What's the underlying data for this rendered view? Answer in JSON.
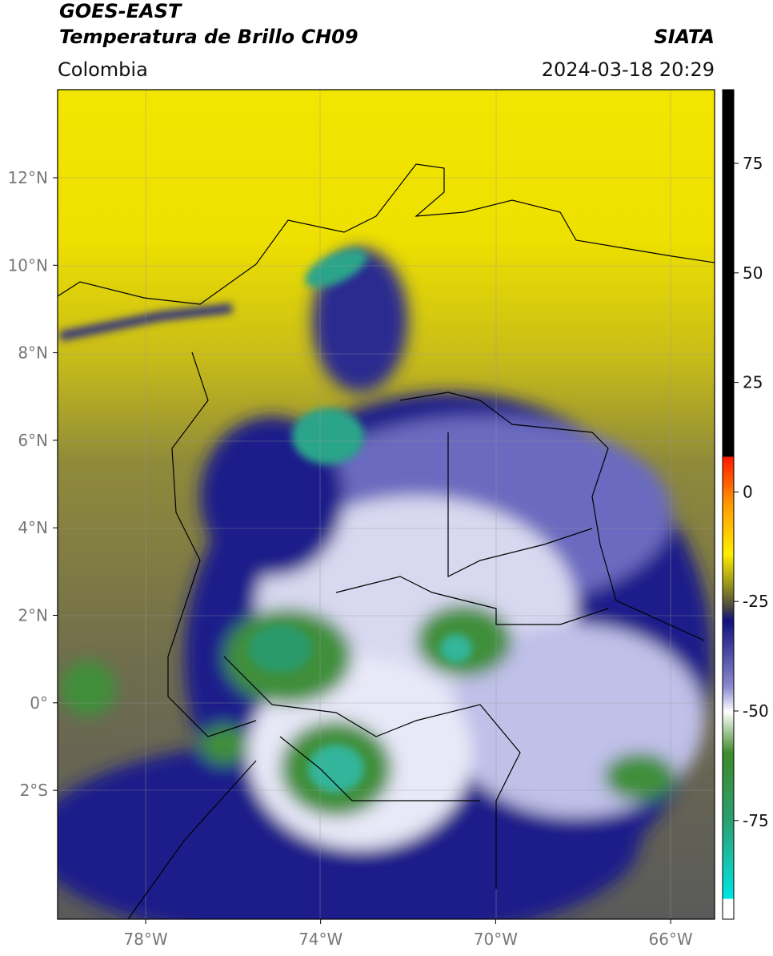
{
  "header": {
    "satellite": "GOES-EAST",
    "product": "Temperatura de Brillo CH09",
    "agency": "SIATA",
    "region": "Colombia",
    "datetime": "2024-03-18 20:29"
  },
  "map": {
    "lat_labels": [
      "12°N",
      "10°N",
      "8°N",
      "6°N",
      "4°N",
      "2°N",
      "0°",
      "2°S"
    ],
    "lon_labels": [
      "78°W",
      "74°W",
      "70°W",
      "66°W"
    ]
  },
  "colorbar": {
    "ticks": [
      75,
      50,
      25,
      0,
      -25,
      -50,
      -75
    ]
  }
}
